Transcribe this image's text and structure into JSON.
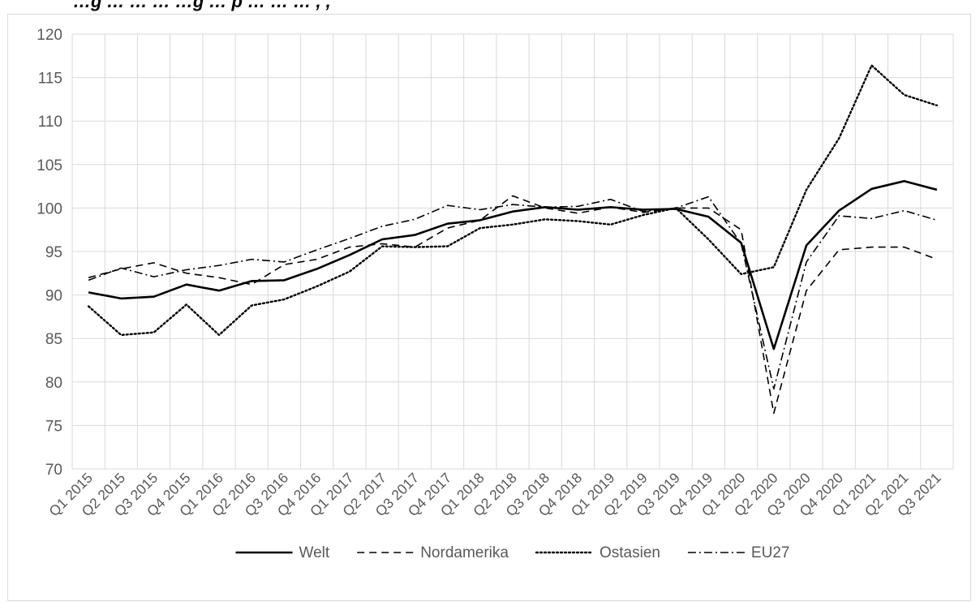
{
  "title_fragment": "…g … … … …g … p … … … , ,",
  "chart_data": {
    "type": "line",
    "categories": [
      "Q1 2015",
      "Q2 2015",
      "Q3 2015",
      "Q4 2015",
      "Q1 2016",
      "Q2 2016",
      "Q3 2016",
      "Q4 2016",
      "Q1 2017",
      "Q2 2017",
      "Q3 2017",
      "Q4 2017",
      "Q1 2018",
      "Q2 2018",
      "Q3 2018",
      "Q4 2018",
      "Q1 2019",
      "Q2 2019",
      "Q3 2019",
      "Q4 2019",
      "Q1 2020",
      "Q2 2020",
      "Q3 2020",
      "Q4 2020",
      "Q1 2021",
      "Q2 2021",
      "Q3 2021"
    ],
    "ylim": [
      70,
      120
    ],
    "yticks": [
      70,
      75,
      80,
      85,
      90,
      95,
      100,
      105,
      110,
      115,
      120
    ],
    "grid": true,
    "legend_position": "bottom",
    "series": [
      {
        "name": "Welt",
        "dash": "solid",
        "color": "#000000",
        "values": [
          90.3,
          89.6,
          89.8,
          91.2,
          90.5,
          91.6,
          91.7,
          93.0,
          94.6,
          96.4,
          96.9,
          98.2,
          98.6,
          99.6,
          100.1,
          99.8,
          100.1,
          99.8,
          99.9,
          99.0,
          96.0,
          83.8,
          95.7,
          99.7,
          102.2,
          103.1,
          102.1
        ]
      },
      {
        "name": "Nordamerika",
        "dash": "dashed",
        "color": "#000000",
        "values": [
          92.0,
          93.0,
          93.7,
          92.5,
          92.0,
          91.2,
          93.5,
          94.1,
          95.5,
          95.9,
          95.5,
          97.7,
          98.6,
          101.4,
          100.0,
          99.4,
          100.1,
          99.5,
          100.0,
          100.0,
          97.5,
          76.4,
          90.5,
          95.2,
          95.5,
          95.5,
          94.1
        ]
      },
      {
        "name": "Ostasien",
        "dash": "dotted",
        "color": "#000000",
        "values": [
          88.7,
          85.4,
          85.7,
          88.9,
          85.4,
          88.8,
          89.5,
          91.0,
          92.7,
          95.6,
          95.5,
          95.6,
          97.7,
          98.1,
          98.7,
          98.5,
          98.1,
          99.2,
          100.0,
          96.4,
          92.4,
          93.2,
          102.1,
          108.0,
          116.4,
          113.0,
          111.8
        ]
      },
      {
        "name": "EU27",
        "dash": "dashdot",
        "color": "#000000",
        "values": [
          91.7,
          93.1,
          92.1,
          92.9,
          93.4,
          94.1,
          93.8,
          95.2,
          96.5,
          97.9,
          98.7,
          100.3,
          99.8,
          100.4,
          100.1,
          100.2,
          101.0,
          99.6,
          100.0,
          101.3,
          95.9,
          79.2,
          93.8,
          99.1,
          98.8,
          99.7,
          98.6
        ]
      }
    ]
  }
}
